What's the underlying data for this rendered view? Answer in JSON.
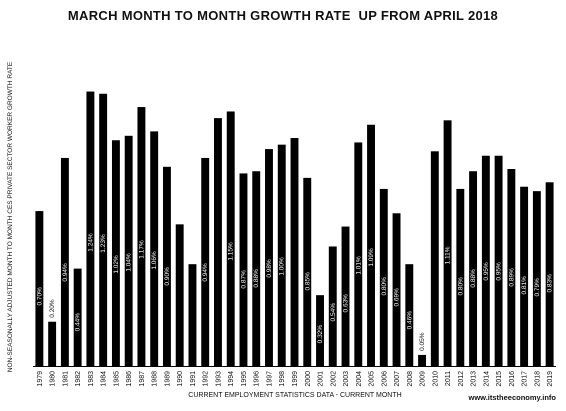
{
  "chart_data": {
    "type": "bar",
    "title": "MARCH MONTH TO MONTH GROWTH RATE  UP FROM APRIL 2018",
    "xlabel": "CURRENT EMPLOYMENT STATISTICS DATA - CURRENT MONTH",
    "ylabel": "NON-SEASONALLY ADJUSTED MONTH TO MONTH CES PRIVATE SECTOR WORKER GROWTH RATE",
    "source": "www.itstheeconomy.info",
    "ylim": [
      0,
      1.5
    ],
    "grid": false,
    "legend": "none",
    "bar_color": "#000000",
    "categories": [
      "1979",
      "1980",
      "1981",
      "1982",
      "1983",
      "1984",
      "1985",
      "1986",
      "1987",
      "1988",
      "1989",
      "1990",
      "1991",
      "1992",
      "1993",
      "1994",
      "1995",
      "1996",
      "1997",
      "1998",
      "1999",
      "2000",
      "2001",
      "2002",
      "2003",
      "2004",
      "2005",
      "2006",
      "2007",
      "2008",
      "2009",
      "2010",
      "2011",
      "2012",
      "2013",
      "2014",
      "2015",
      "2016",
      "2017",
      "2018",
      "2019"
    ],
    "values": [
      0.7,
      0.2,
      0.94,
      0.44,
      1.24,
      1.23,
      1.02,
      1.04,
      1.17,
      1.06,
      0.9,
      0.64,
      0.46,
      0.94,
      1.12,
      1.15,
      0.87,
      0.88,
      0.98,
      1.0,
      1.03,
      0.85,
      0.32,
      0.54,
      0.63,
      1.01,
      1.09,
      0.8,
      0.69,
      0.46,
      0.05,
      0.97,
      1.11,
      0.8,
      0.88,
      0.95,
      0.95,
      0.89,
      0.81,
      0.79,
      0.83
    ],
    "labels": [
      "0.70%",
      "0.20%",
      "0.94%",
      "0.44%",
      "1.24%",
      "1.23%",
      "1.02%",
      "1.04%",
      "1.17%",
      "1.06%",
      "0.90%",
      "",
      "",
      "0.94%",
      "",
      "1.15%",
      "0.87%",
      "0.88%",
      "0.98%",
      "1.00%",
      "",
      "0.85%",
      "0.32%",
      "0.54%",
      "0.63%",
      "1.01%",
      "1.09%",
      "0.80%",
      "0.69%",
      "0.46%",
      "0.05%",
      "",
      "1.11%",
      "0.80%",
      "0.88%",
      "0.95%",
      "0.95%",
      "0.89%",
      "0.81%",
      "0.79%",
      "0.83%"
    ]
  }
}
